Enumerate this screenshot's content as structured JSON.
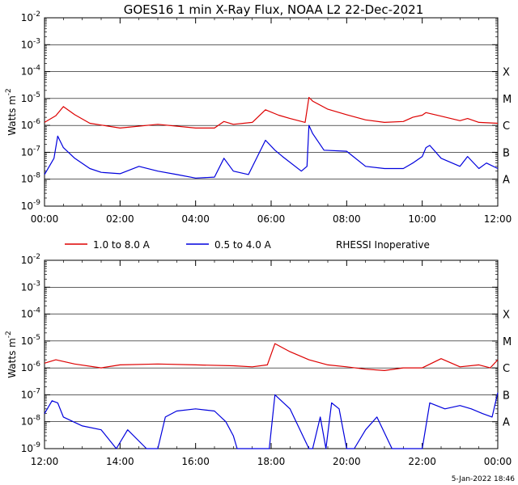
{
  "title": "GOES16  1 min X-Ray Flux, NOAA L2     22-Dec-2021",
  "footer": "5-Jan-2022 18:46",
  "legend": {
    "long_label": "1.0 to 8.0 A",
    "short_label": "0.5 to 4.0 A",
    "note": "RHESSI Inoperative"
  },
  "colors": {
    "long": "#dd0000",
    "short": "#0000dd",
    "grid": "#000000"
  },
  "chart_data": [
    {
      "type": "line",
      "title": "GOES16  1 min X-Ray Flux, NOAA L2     22-Dec-2021",
      "ylabel": "Watts m^-2",
      "yscale": "log",
      "ylim": [
        1e-09,
        0.01
      ],
      "xlim": [
        0,
        12
      ],
      "grid": true,
      "x_tick_labels": [
        "00:00",
        "02:00",
        "04:00",
        "06:00",
        "08:00",
        "10:00",
        "12:00"
      ],
      "y_tick_labels": [
        "10^-2",
        "10^-3",
        "10^-4",
        "10^-5",
        "10^-6",
        "10^-7",
        "10^-8",
        "10^-9"
      ],
      "class_labels": [
        "X",
        "M",
        "C",
        "B",
        "A"
      ],
      "series": [
        {
          "name": "1.0 to 8.0 A",
          "color": "#dd0000",
          "x": [
            0,
            0.3,
            0.5,
            0.8,
            1.2,
            2,
            3,
            4,
            4.5,
            4.75,
            5,
            5.5,
            5.85,
            6.2,
            6.5,
            6.9,
            7.0,
            7.1,
            7.5,
            8,
            8.5,
            9,
            9.5,
            9.75,
            10,
            10.1,
            10.5,
            11,
            11.2,
            11.5,
            12
          ],
          "y": [
            1.3e-06,
            2.3e-06,
            5e-06,
            2.5e-06,
            1.2e-06,
            8e-07,
            1.1e-06,
            8e-07,
            8e-07,
            1.4e-06,
            1.1e-06,
            1.3e-06,
            3.8e-06,
            2.4e-06,
            1.8e-06,
            1.3e-06,
            1.1e-05,
            8e-06,
            4e-06,
            2.5e-06,
            1.6e-06,
            1.3e-06,
            1.4e-06,
            2e-06,
            2.4e-06,
            3e-06,
            2.2e-06,
            1.5e-06,
            1.8e-06,
            1.3e-06,
            1.2e-06
          ]
        },
        {
          "name": "0.5 to 4.0 A",
          "color": "#0000dd",
          "x": [
            0,
            0.25,
            0.35,
            0.5,
            0.8,
            1.2,
            1.5,
            2,
            2.5,
            3,
            3.5,
            4,
            4.5,
            4.75,
            5,
            5.4,
            5.85,
            6.1,
            6.3,
            6.8,
            6.95,
            7.0,
            7.1,
            7.4,
            8,
            8.5,
            9,
            9.5,
            9.75,
            10.0,
            10.1,
            10.2,
            10.5,
            11,
            11.2,
            11.5,
            11.7,
            12
          ],
          "y": [
            1.5e-08,
            6e-08,
            4e-07,
            1.5e-07,
            6e-08,
            2.5e-08,
            1.8e-08,
            1.6e-08,
            3e-08,
            2e-08,
            1.5e-08,
            1.1e-08,
            1.2e-08,
            6e-08,
            2e-08,
            1.5e-08,
            2.8e-07,
            1.2e-07,
            7e-08,
            2e-08,
            3e-08,
            1e-06,
            5e-07,
            1.2e-07,
            1.1e-07,
            3e-08,
            2.5e-08,
            2.5e-08,
            4e-08,
            7e-08,
            1.5e-07,
            1.8e-07,
            6e-08,
            3e-08,
            7e-08,
            2.5e-08,
            4e-08,
            2.5e-08
          ]
        }
      ]
    },
    {
      "type": "line",
      "ylabel": "Watts m^-2",
      "yscale": "log",
      "ylim": [
        1e-09,
        0.01
      ],
      "xlim": [
        12,
        24
      ],
      "grid": true,
      "x_tick_labels": [
        "12:00",
        "14:00",
        "16:00",
        "18:00",
        "20:00",
        "22:00",
        "00:00"
      ],
      "y_tick_labels": [
        "10^-2",
        "10^-3",
        "10^-4",
        "10^-5",
        "10^-6",
        "10^-7",
        "10^-8",
        "10^-9"
      ],
      "class_labels": [
        "X",
        "M",
        "C",
        "B",
        "A"
      ],
      "series": [
        {
          "name": "1.0 to 8.0 A",
          "color": "#dd0000",
          "x": [
            12,
            12.3,
            12.8,
            13.5,
            14,
            15,
            16,
            17,
            17.5,
            17.9,
            18.1,
            18.5,
            19,
            19.5,
            20,
            20.5,
            21,
            21.5,
            22,
            22.5,
            23,
            23.5,
            23.8,
            24
          ],
          "y": [
            1.5e-06,
            2e-06,
            1.4e-06,
            1e-06,
            1.3e-06,
            1.4e-06,
            1.3e-06,
            1.2e-06,
            1.1e-06,
            1.3e-06,
            8e-06,
            4e-06,
            2e-06,
            1.3e-06,
            1.1e-06,
            9e-07,
            8e-07,
            1e-06,
            1e-06,
            2.2e-06,
            1.1e-06,
            1.3e-06,
            1e-06,
            2e-06
          ]
        },
        {
          "name": "0.5 to 4.0 A",
          "color": "#0000dd",
          "x": [
            12,
            12.2,
            12.35,
            12.5,
            13,
            13.5,
            13.9,
            14.2,
            14.7,
            15.0,
            15.2,
            15.5,
            16,
            16.5,
            16.8,
            17,
            17.1,
            17.3,
            17.6,
            17.95,
            18.1,
            18.5,
            19,
            19.1,
            19.3,
            19.45,
            19.6,
            19.8,
            20,
            20.2,
            20.5,
            20.8,
            21.2,
            21.6,
            22,
            22.2,
            22.6,
            23,
            23.3,
            23.6,
            23.85,
            24
          ],
          "y": [
            2e-08,
            6e-08,
            5e-08,
            1.5e-08,
            7e-09,
            5e-09,
            1e-09,
            5e-09,
            1e-09,
            1e-09,
            1.5e-08,
            2.5e-08,
            3e-08,
            2.5e-08,
            1e-08,
            3e-09,
            1e-09,
            1e-09,
            1e-09,
            1e-09,
            1e-07,
            3e-08,
            1e-09,
            1e-09,
            1.5e-08,
            1e-09,
            5e-08,
            3e-08,
            1e-09,
            1e-09,
            5e-09,
            1.5e-08,
            1e-09,
            1e-09,
            1e-09,
            5e-08,
            3e-08,
            4e-08,
            3e-08,
            2e-08,
            1.5e-08,
            1.2e-07
          ]
        }
      ]
    }
  ]
}
